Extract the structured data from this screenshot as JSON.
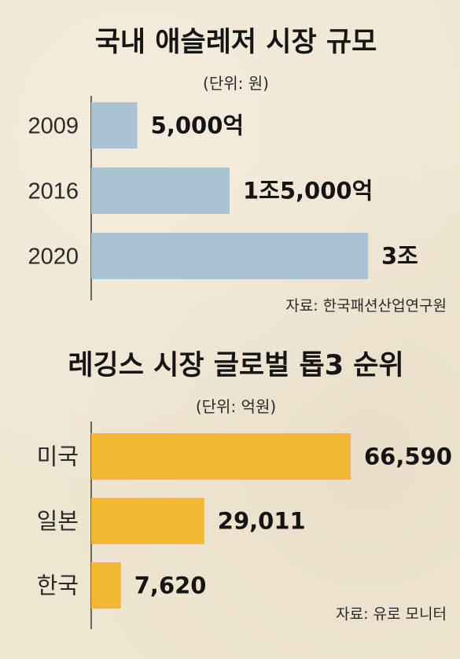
{
  "chart_data": [
    {
      "type": "bar",
      "orientation": "horizontal",
      "title": "국내 애슬레저 시장 규모",
      "unit_label": "(단위: 원)",
      "categories": [
        "2009",
        "2016",
        "2020"
      ],
      "values": [
        5000,
        15000,
        30000
      ],
      "value_unit": "억원",
      "value_labels": [
        "5,000억",
        "1조5,000억",
        "3조"
      ],
      "bar_color": "#a9c3d5",
      "source": "자료:  한국패션산업연구원",
      "xlim": [
        0,
        30000
      ]
    },
    {
      "type": "bar",
      "orientation": "horizontal",
      "title": "레깅스 시장 글로벌 톱3 순위",
      "unit_label": "(단위: 억원)",
      "categories": [
        "미국",
        "일본",
        "한국"
      ],
      "values": [
        66590,
        29011,
        7620
      ],
      "value_labels": [
        "66,590",
        "29,011",
        "7,620"
      ],
      "bar_color": "#f3b832",
      "source": "자료:  유로 모니터",
      "xlim": [
        0,
        66590
      ]
    }
  ]
}
